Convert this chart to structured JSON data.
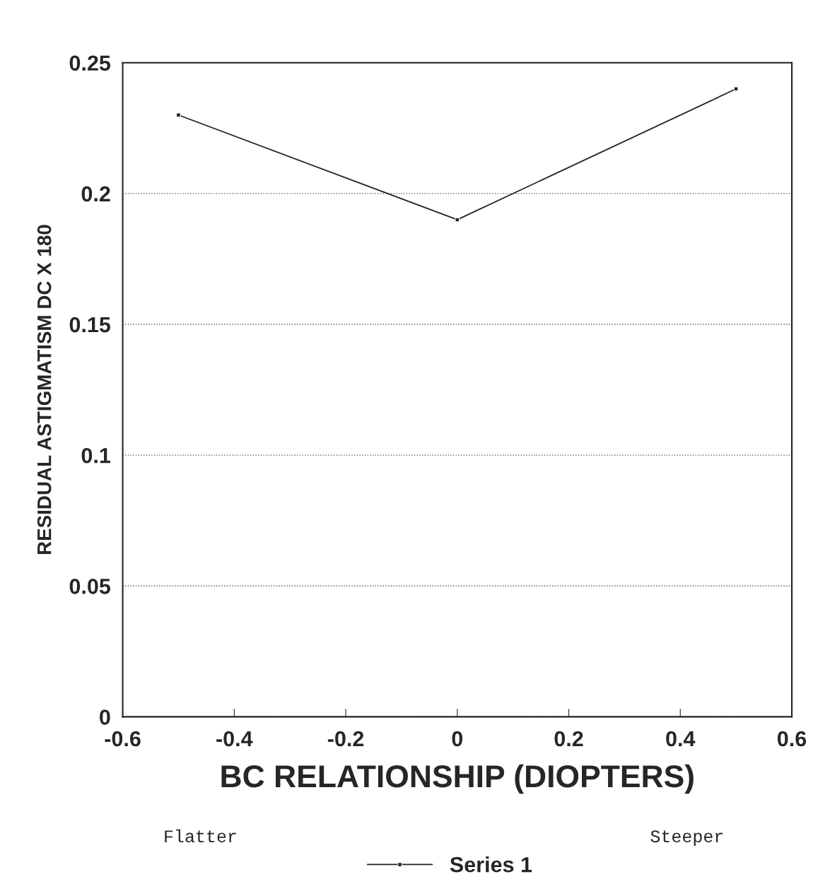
{
  "chart_data": {
    "type": "line",
    "xlabel": "BC RELATIONSHIP (DIOPTERS)",
    "ylabel": "RESIDUAL ASTIGMATISM DC X 180",
    "x": [
      -0.5,
      0,
      0.5
    ],
    "series": [
      {
        "name": "Series 1",
        "color": "#222222",
        "values": [
          0.23,
          0.19,
          0.24
        ]
      }
    ],
    "xlim": [
      -0.6,
      0.6
    ],
    "xticks": [
      -0.6,
      -0.4,
      -0.2,
      0,
      0.2,
      0.4,
      0.6
    ],
    "ylim": [
      0,
      0.25
    ],
    "yticks": [
      0,
      0.05,
      0.1,
      0.15,
      0.2,
      0.25
    ],
    "grid": "y",
    "legend": "bottom",
    "marker": "square",
    "line_style": "solid",
    "annotations": [
      "Flatter",
      "Steeper"
    ]
  }
}
